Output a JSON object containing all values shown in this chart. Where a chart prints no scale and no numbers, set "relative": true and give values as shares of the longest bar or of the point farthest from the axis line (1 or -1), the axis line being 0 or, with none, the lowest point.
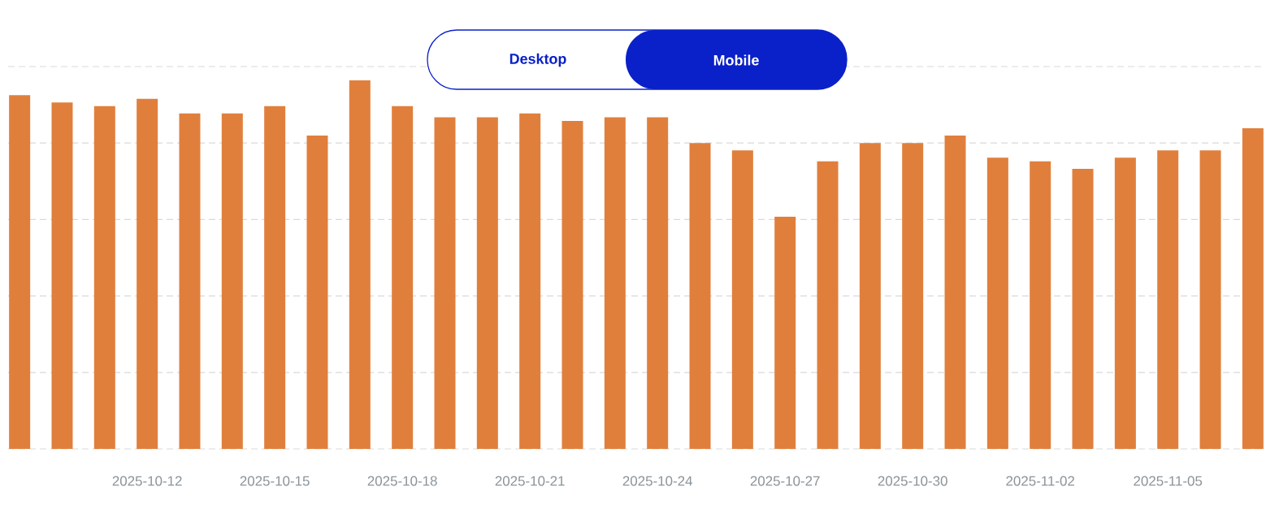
{
  "chart_data": {
    "type": "bar",
    "relative": true,
    "color": "#e07f3c",
    "grid": "y",
    "annotations": [
      "Desktop",
      "Mobile"
    ],
    "categories": [
      null,
      null,
      null,
      "2025-10-12",
      null,
      null,
      "2025-10-15",
      null,
      null,
      "2025-10-18",
      null,
      null,
      "2025-10-21",
      null,
      null,
      "2025-10-24",
      null,
      null,
      "2025-10-27",
      null,
      null,
      "2025-10-30",
      null,
      null,
      "2025-11-02",
      null,
      null,
      "2025-11-05",
      null,
      null
    ],
    "values": [
      0.96,
      0.94,
      0.93,
      0.95,
      0.91,
      0.91,
      0.93,
      0.85,
      1.0,
      0.93,
      0.9,
      0.9,
      0.91,
      0.89,
      0.9,
      0.9,
      0.83,
      0.81,
      0.63,
      0.78,
      0.83,
      0.83,
      0.85,
      0.79,
      0.78,
      0.76,
      0.79,
      0.81,
      0.81,
      0.87
    ]
  }
}
